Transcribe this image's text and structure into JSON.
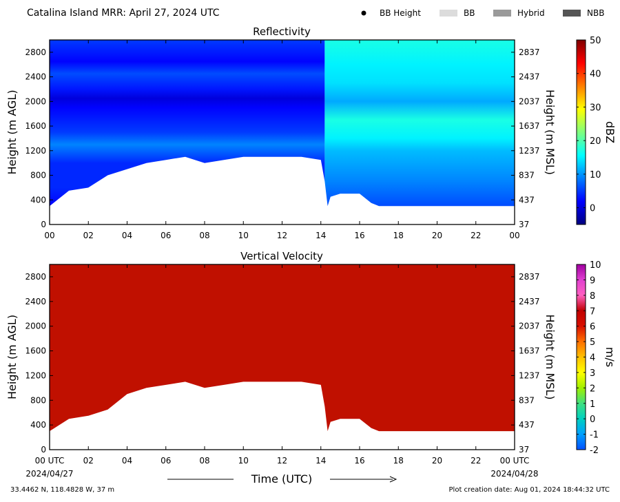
{
  "header": {
    "title": "Catalina Island MRR:  April 27, 2024 UTC",
    "legend": [
      {
        "label": "BB Height",
        "kind": "dot",
        "color": "#000000"
      },
      {
        "label": "BB",
        "kind": "swatch",
        "color": "#dcdcdc"
      },
      {
        "label": "Hybrid",
        "kind": "swatch",
        "color": "#9a9a9a"
      },
      {
        "label": "NBB",
        "kind": "swatch",
        "color": "#555555"
      }
    ]
  },
  "footer": {
    "location": "33.4462 N, 118.4828 W, 37 m",
    "creation": "Plot creation date: Aug 01, 2024 18:44:32 UTC",
    "start_date": "2024/04/27",
    "end_date": "2024/04/28"
  },
  "chart_data": [
    {
      "type": "heatmap",
      "title": "Reflectivity",
      "xlabel": "",
      "ylabel": "Height (m AGL)",
      "y2label": "Height (m MSL)",
      "x_ticks": [
        "00",
        "02",
        "04",
        "06",
        "08",
        "10",
        "12",
        "14",
        "16",
        "18",
        "20",
        "22",
        "00"
      ],
      "xlim": [
        0,
        24
      ],
      "ylim": [
        0,
        3000
      ],
      "y_ticks": [
        0,
        400,
        800,
        1200,
        1600,
        2000,
        2400,
        2800
      ],
      "y2_ticks": [
        "37",
        "437",
        "837",
        "1237",
        "1637",
        "2037",
        "2437",
        "2837"
      ],
      "data_top": 3000,
      "colorbar": {
        "label": "dBZ",
        "range": [
          -5,
          50
        ],
        "ticks": [
          0,
          10,
          20,
          30,
          40,
          50
        ],
        "colors": [
          "#00007f",
          "#0000ff",
          "#007fff",
          "#00ffff",
          "#7fff7f",
          "#ffff00",
          "#ff7f00",
          "#ff0000",
          "#7f0000"
        ]
      },
      "echo_base_m": [
        [
          0,
          300
        ],
        [
          1,
          550
        ],
        [
          2,
          600
        ],
        [
          3,
          800
        ],
        [
          4,
          900
        ],
        [
          5,
          1000
        ],
        [
          6,
          1050
        ],
        [
          7,
          1100
        ],
        [
          8,
          1000
        ],
        [
          9,
          1050
        ],
        [
          10,
          1100
        ],
        [
          11,
          1100
        ],
        [
          12,
          1100
        ],
        [
          13,
          1100
        ],
        [
          14,
          1050
        ],
        [
          14.2,
          700
        ],
        [
          14.35,
          300
        ],
        [
          14.5,
          450
        ],
        [
          15,
          500
        ],
        [
          16,
          500
        ],
        [
          16.6,
          350
        ],
        [
          17,
          300
        ],
        [
          24,
          300
        ]
      ],
      "color_bands": [
        {
          "from": 0,
          "to": 14.2,
          "height_profile_dbz": [
            [
              300,
              2
            ],
            [
              600,
              4
            ],
            [
              1000,
              4
            ],
            [
              1300,
              9
            ],
            [
              1500,
              5
            ],
            [
              1900,
              2
            ],
            [
              2050,
              0
            ],
            [
              2200,
              3
            ],
            [
              2450,
              6
            ],
            [
              2650,
              2
            ],
            [
              3000,
              5
            ]
          ]
        },
        {
          "from": 14.2,
          "to": 24,
          "height_profile_dbz": [
            [
              300,
              6
            ],
            [
              700,
              9
            ],
            [
              1200,
              12
            ],
            [
              1400,
              15
            ],
            [
              1700,
              17
            ],
            [
              2000,
              11
            ],
            [
              2300,
              14
            ],
            [
              2600,
              15
            ],
            [
              3000,
              17
            ]
          ]
        }
      ]
    },
    {
      "type": "heatmap",
      "title": "Vertical Velocity",
      "xlabel": "Time (UTC)",
      "ylabel": "Height (m AGL)",
      "y2label": "Height (m MSL)",
      "x_ticks": [
        "00 UTC",
        "02",
        "04",
        "06",
        "08",
        "10",
        "12",
        "14",
        "16",
        "18",
        "20",
        "22",
        "00 UTC"
      ],
      "xlim": [
        0,
        24
      ],
      "ylim": [
        0,
        3000
      ],
      "y_ticks": [
        0,
        400,
        800,
        1200,
        1600,
        2000,
        2400,
        2800
      ],
      "y2_ticks": [
        "37",
        "437",
        "837",
        "1237",
        "1637",
        "2037",
        "2437",
        "2837"
      ],
      "data_top": 3000,
      "value_ms": 6,
      "colorbar": {
        "label": "m/s",
        "range": [
          -2,
          10
        ],
        "ticks": [
          -2,
          -1,
          0,
          1,
          2,
          3,
          4,
          5,
          6,
          7,
          8,
          9,
          10
        ],
        "colors": [
          "#0050ff",
          "#00a0ff",
          "#00d0c0",
          "#40e080",
          "#a0f000",
          "#ffff00",
          "#ffc000",
          "#ff7000",
          "#d81000",
          "#c00000",
          "#ff60c0",
          "#e040d0",
          "#a000a0"
        ]
      },
      "echo_base_m": [
        [
          0,
          300
        ],
        [
          1,
          500
        ],
        [
          2,
          550
        ],
        [
          3,
          650
        ],
        [
          4,
          900
        ],
        [
          5,
          1000
        ],
        [
          6,
          1050
        ],
        [
          7,
          1100
        ],
        [
          8,
          1000
        ],
        [
          9,
          1050
        ],
        [
          10,
          1100
        ],
        [
          11,
          1100
        ],
        [
          12,
          1100
        ],
        [
          13,
          1100
        ],
        [
          14,
          1050
        ],
        [
          14.2,
          700
        ],
        [
          14.35,
          300
        ],
        [
          14.5,
          450
        ],
        [
          15,
          500
        ],
        [
          16,
          500
        ],
        [
          16.6,
          350
        ],
        [
          17,
          300
        ],
        [
          24,
          300
        ]
      ]
    }
  ]
}
